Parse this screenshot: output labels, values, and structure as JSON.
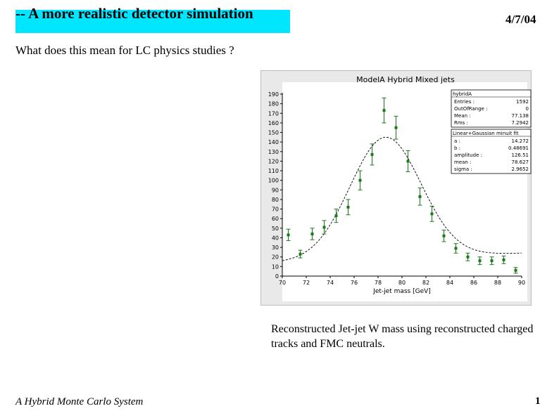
{
  "slide": {
    "title": "-- A more realistic detector simulation",
    "date": "4/7/04",
    "subtitle": "What does this mean for LC physics studies ?",
    "caption": "Reconstructed Jet-jet W mass using reconstructed charged tracks and FMC neutrals.",
    "footer": "A Hybrid Monte Carlo System",
    "page_number": "1"
  },
  "colors": {
    "title_bg": "#00e6ff",
    "data_points": "#1a7a1a",
    "fit_curve": "#000000",
    "chart_bg": "#e9e9e9"
  },
  "chart_data": {
    "type": "scatter",
    "title": "ModelA Hybrid Mixed jets",
    "xlabel": "Jet-jet mass [GeV]",
    "ylabel": "",
    "xlim": [
      70,
      90
    ],
    "ylim": [
      0,
      190
    ],
    "x_ticks": [
      "70",
      "72",
      "74",
      "76",
      "78",
      "80",
      "82",
      "84",
      "86",
      "88",
      "90"
    ],
    "y_ticks": [
      "0",
      "10",
      "20",
      "30",
      "40",
      "50",
      "60",
      "70",
      "80",
      "90",
      "100",
      "110",
      "120",
      "130",
      "140",
      "150",
      "160",
      "170",
      "180",
      "190"
    ],
    "series": [
      {
        "name": "hybridA",
        "points": [
          {
            "x": 70.5,
            "y": 43,
            "err": 6
          },
          {
            "x": 71.5,
            "y": 23,
            "err": 4
          },
          {
            "x": 72.5,
            "y": 44,
            "err": 6
          },
          {
            "x": 73.5,
            "y": 51,
            "err": 7
          },
          {
            "x": 74.5,
            "y": 63,
            "err": 7
          },
          {
            "x": 75.5,
            "y": 72,
            "err": 8
          },
          {
            "x": 76.5,
            "y": 100,
            "err": 10
          },
          {
            "x": 77.5,
            "y": 127,
            "err": 11
          },
          {
            "x": 78.5,
            "y": 173,
            "err": 13
          },
          {
            "x": 79.5,
            "y": 155,
            "err": 12
          },
          {
            "x": 80.5,
            "y": 120,
            "err": 11
          },
          {
            "x": 81.5,
            "y": 83,
            "err": 9
          },
          {
            "x": 82.5,
            "y": 65,
            "err": 8
          },
          {
            "x": 83.5,
            "y": 42,
            "err": 6
          },
          {
            "x": 84.5,
            "y": 29,
            "err": 5
          },
          {
            "x": 85.5,
            "y": 20,
            "err": 4
          },
          {
            "x": 86.5,
            "y": 16,
            "err": 4
          },
          {
            "x": 87.5,
            "y": 16,
            "err": 4
          },
          {
            "x": 88.5,
            "y": 17,
            "err": 4
          },
          {
            "x": 89.5,
            "y": 6,
            "err": 3
          }
        ]
      }
    ],
    "fit": {
      "name": "Linear+Gaussian minuit fit",
      "a": 14.272,
      "b": 0.48691,
      "amplitude": 126.51,
      "mean": 78.627,
      "sigma": 2.9652
    },
    "stats_box": {
      "title": "hybridA",
      "rows": [
        {
          "label": "Entries :",
          "value": "1592"
        },
        {
          "label": "OutOfRange :",
          "value": "0"
        },
        {
          "label": "Mean :",
          "value": "77.138"
        },
        {
          "label": "Rms :",
          "value": "7.2942"
        }
      ]
    },
    "fit_box": {
      "title": "Linear+Gaussian minuit fit",
      "rows": [
        {
          "label": "a :",
          "value": "14.272"
        },
        {
          "label": "b :",
          "value": "0.48691"
        },
        {
          "label": "amplitude :",
          "value": "126.51"
        },
        {
          "label": "mean :",
          "value": "78.627"
        },
        {
          "label": "sigma :",
          "value": "2.9652"
        }
      ]
    }
  }
}
